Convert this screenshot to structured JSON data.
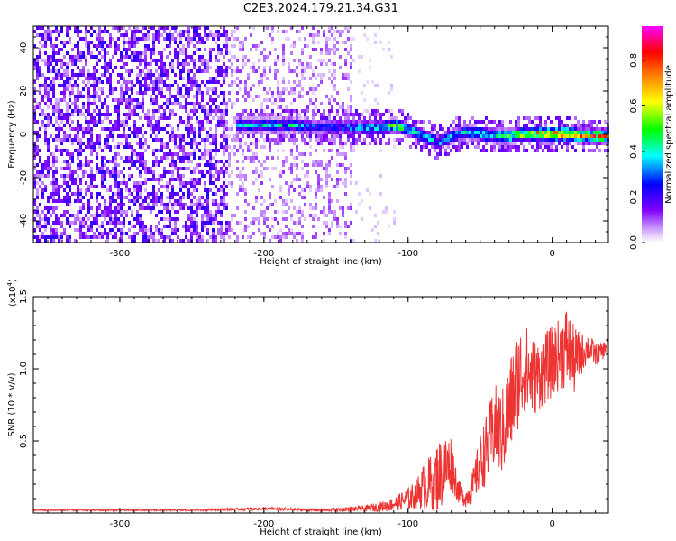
{
  "title": "C2E3.2024.179.21.34.G31",
  "chart_data": [
    {
      "type": "heatmap",
      "xlabel": "Height of straight line (km)",
      "ylabel": "Frequency (Hz)",
      "xlim": [
        -360,
        39
      ],
      "ylim": [
        -50,
        50
      ],
      "xticks": [
        -300,
        -200,
        -100,
        0
      ],
      "yticks": [
        -40,
        -20,
        0,
        20,
        40
      ],
      "xtick_labels": [
        "-300",
        "-200",
        "-100",
        "0"
      ],
      "ytick_labels": [
        "-40",
        "-20",
        "0",
        "20",
        "40"
      ],
      "colorbar": {
        "label": "Normalized spectral amplitude",
        "range": [
          0,
          0.95
        ],
        "ticks": [
          0.0,
          0.2,
          0.4,
          0.6,
          0.8
        ],
        "tick_labels": [
          "0.0",
          "0.2",
          "0.4",
          "0.6",
          "0.8"
        ],
        "colormap": [
          "#ffffff",
          "#d9b3ff",
          "#8000ff",
          "#0000ff",
          "#00ffff",
          "#00ff00",
          "#ffff00",
          "#ff8000",
          "#ff0000",
          "#ff00ff"
        ]
      },
      "features": [
        {
          "description_x_range": [
            -360,
            -225
          ],
          "freq_range": [
            -50,
            50
          ],
          "amplitude": 0.15
        },
        {
          "description_x_range": [
            -225,
            -140
          ],
          "freq_range": [
            -50,
            50
          ],
          "amplitude": 0.08
        },
        {
          "description_x_range": [
            -140,
            -110
          ],
          "freq_range": [
            -50,
            50
          ],
          "amplitude": 0.03
        }
      ],
      "ridge": [
        {
          "x": -220,
          "f": 5,
          "a": 0.35
        },
        {
          "x": -200,
          "f": 5,
          "a": 0.4
        },
        {
          "x": -180,
          "f": 5,
          "a": 0.4
        },
        {
          "x": -160,
          "f": 4,
          "a": 0.3
        },
        {
          "x": -140,
          "f": 4,
          "a": 0.4
        },
        {
          "x": -120,
          "f": 4,
          "a": 0.45
        },
        {
          "x": -110,
          "f": 5,
          "a": 0.6
        },
        {
          "x": -100,
          "f": 3,
          "a": 0.45
        },
        {
          "x": -90,
          "f": 0,
          "a": 0.4
        },
        {
          "x": -80,
          "f": -3,
          "a": 0.4
        },
        {
          "x": -70,
          "f": 0,
          "a": 0.4
        },
        {
          "x": -60,
          "f": 2,
          "a": 0.45
        },
        {
          "x": -50,
          "f": 1,
          "a": 0.5
        },
        {
          "x": -40,
          "f": 0,
          "a": 0.5
        },
        {
          "x": -30,
          "f": 0,
          "a": 0.55
        },
        {
          "x": -20,
          "f": 1,
          "a": 0.7
        },
        {
          "x": -10,
          "f": 1,
          "a": 0.8
        },
        {
          "x": 0,
          "f": 1,
          "a": 0.85
        },
        {
          "x": 10,
          "f": 1,
          "a": 0.85
        },
        {
          "x": 20,
          "f": 0,
          "a": 0.75
        },
        {
          "x": 30,
          "f": 0,
          "a": 0.75
        },
        {
          "x": 39,
          "f": 0,
          "a": 0.7
        }
      ]
    },
    {
      "type": "line",
      "xlabel": "Height of straight line (km)",
      "ylabel": "SNR (10 * v/v)",
      "yscale_label": "(x10",
      "yscale_exp": "4",
      "yscale_close": ")",
      "xlim": [
        -360,
        39
      ],
      "ylim": [
        0,
        1.5
      ],
      "xticks": [
        -300,
        -200,
        -100,
        0
      ],
      "yticks": [
        0.5,
        1.0,
        1.5
      ],
      "xtick_labels": [
        "-300",
        "-200",
        "-100",
        "0"
      ],
      "ytick_labels": [
        "0.5",
        "1.0",
        "1.5"
      ],
      "color": "#ee3333",
      "series": [
        {
          "x": [
            -360,
            -300,
            -250,
            -200,
            -160,
            -130,
            -115,
            -105,
            -95,
            -90,
            -85,
            -80,
            -75,
            -70,
            -65,
            -60,
            -55,
            -50,
            -45,
            -40,
            -35,
            -30,
            -25,
            -20,
            -15,
            -10,
            -5,
            0,
            5,
            10,
            15,
            20,
            25,
            30,
            35,
            39
          ],
          "y": [
            0.02,
            0.02,
            0.02,
            0.03,
            0.02,
            0.03,
            0.05,
            0.08,
            0.12,
            0.18,
            0.2,
            0.25,
            0.3,
            0.35,
            0.15,
            0.1,
            0.18,
            0.35,
            0.45,
            0.6,
            0.55,
            0.7,
            0.9,
            1.0,
            0.95,
            0.95,
            1.0,
            1.05,
            1.1,
            1.15,
            1.05,
            1.1,
            1.15,
            1.1,
            1.12,
            1.18
          ],
          "spread": [
            0.005,
            0.005,
            0.005,
            0.01,
            0.01,
            0.02,
            0.04,
            0.06,
            0.1,
            0.15,
            0.2,
            0.25,
            0.25,
            0.2,
            0.08,
            0.06,
            0.12,
            0.2,
            0.25,
            0.3,
            0.3,
            0.35,
            0.35,
            0.35,
            0.3,
            0.25,
            0.25,
            0.25,
            0.25,
            0.3,
            0.25,
            0.15,
            0.1,
            0.08,
            0.06,
            0.05
          ]
        }
      ]
    }
  ]
}
